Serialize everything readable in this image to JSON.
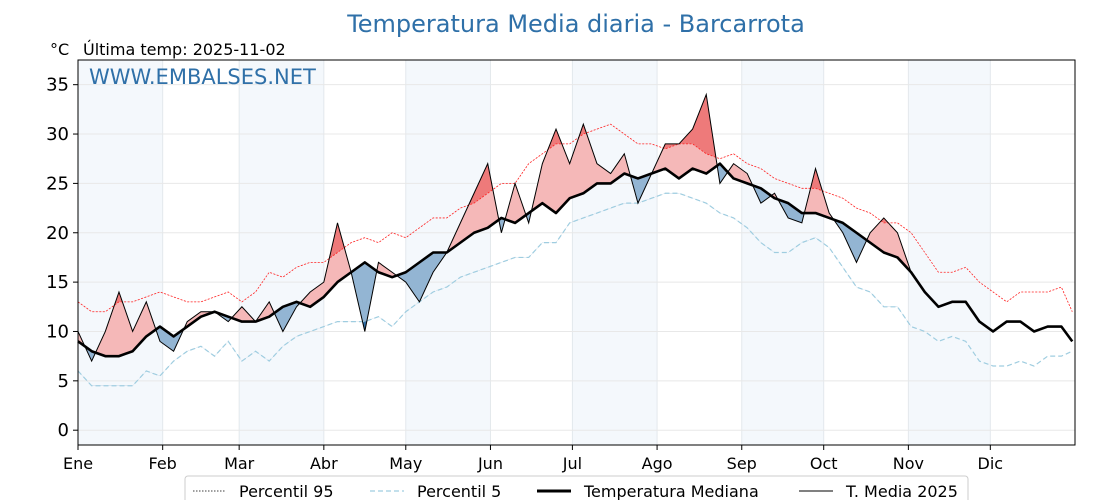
{
  "chart_data": {
    "type": "line",
    "title": "Temperatura Media diaria - Barcarrota",
    "ylabel": "°C",
    "subtitle": "Última temp: 2025-11-02",
    "watermark": "WWW.EMBALSES.NET",
    "xlim": [
      0,
      365
    ],
    "ylim": [
      -1.5,
      37.5
    ],
    "yticks": [
      0,
      5,
      10,
      15,
      20,
      25,
      30,
      35
    ],
    "month_ticks": [
      {
        "label": "Ene",
        "day": 0
      },
      {
        "label": "Feb",
        "day": 31
      },
      {
        "label": "Mar",
        "day": 59
      },
      {
        "label": "Abr",
        "day": 90
      },
      {
        "label": "May",
        "day": 120
      },
      {
        "label": "Jun",
        "day": 151
      },
      {
        "label": "Jul",
        "day": 181
      },
      {
        "label": "Ago",
        "day": 212
      },
      {
        "label": "Sep",
        "day": 243
      },
      {
        "label": "Oct",
        "day": 273
      },
      {
        "label": "Nov",
        "day": 304
      },
      {
        "label": "Dic",
        "day": 334
      }
    ],
    "grid": true,
    "legend_position": "bottom-center",
    "x_days": [
      0,
      5,
      10,
      15,
      20,
      25,
      30,
      35,
      40,
      45,
      50,
      55,
      60,
      65,
      70,
      75,
      80,
      85,
      90,
      95,
      100,
      105,
      110,
      115,
      120,
      125,
      130,
      135,
      140,
      145,
      150,
      155,
      160,
      165,
      170,
      175,
      180,
      185,
      190,
      195,
      200,
      205,
      210,
      215,
      220,
      225,
      230,
      235,
      240,
      245,
      250,
      255,
      260,
      265,
      270,
      275,
      280,
      285,
      290,
      295,
      300,
      305,
      310,
      315,
      320,
      325,
      330,
      335,
      340,
      345,
      350,
      355,
      360,
      364
    ],
    "series": [
      {
        "name": "Percentil 95",
        "color": "#ff2020",
        "values": [
          13,
          12,
          12,
          13,
          13,
          13.5,
          14,
          13.5,
          13,
          13,
          13.5,
          14,
          13,
          14,
          16,
          15.5,
          16.5,
          17,
          17,
          18,
          19,
          19.5,
          19,
          20,
          19.5,
          20.5,
          21.5,
          21.5,
          22.5,
          23,
          24,
          25,
          25,
          27,
          28,
          29,
          29,
          30,
          30.5,
          31,
          30,
          29,
          29,
          28.5,
          29,
          29,
          28,
          27.5,
          28,
          27,
          26.5,
          25.5,
          25,
          24.5,
          24.5,
          24,
          23.5,
          22.5,
          22,
          21,
          21,
          20,
          18,
          16,
          16,
          16.5,
          15,
          14,
          13,
          14,
          14,
          14,
          14.5,
          12
        ]
      },
      {
        "name": "Percentil 5",
        "color": "#9fcde0",
        "values": [
          6,
          4.5,
          4.5,
          4.5,
          4.5,
          6,
          5.5,
          7,
          8,
          8.5,
          7.5,
          9,
          7,
          8,
          7,
          8.5,
          9.5,
          10,
          10.5,
          11,
          11,
          11,
          11.5,
          10.5,
          12,
          13,
          14,
          14.5,
          15.5,
          16,
          16.5,
          17,
          17.5,
          17.5,
          19,
          19,
          21,
          21.5,
          22,
          22.5,
          23,
          23,
          23.5,
          24,
          24,
          23.5,
          23,
          22,
          21.5,
          20.5,
          19,
          18,
          18,
          19,
          19.5,
          18.5,
          16.5,
          14.5,
          14,
          12.5,
          12.5,
          10.5,
          10,
          9,
          9.5,
          9,
          7,
          6.5,
          6.5,
          7,
          6.5,
          7.5,
          7.5,
          8
        ]
      },
      {
        "name": "Temperatura Mediana",
        "color": "#000000",
        "values": [
          9,
          8,
          7.5,
          7.5,
          8,
          9.5,
          10.5,
          9.5,
          10.5,
          11.5,
          12,
          11.5,
          11,
          11,
          11.5,
          12.5,
          13,
          12.5,
          13.5,
          15,
          16,
          17,
          16,
          15.5,
          16,
          17,
          18,
          18,
          19,
          20,
          20.5,
          21.5,
          21,
          22,
          23,
          22,
          23.5,
          24,
          25,
          25,
          26,
          25.5,
          26,
          26.5,
          25.5,
          26.5,
          26,
          27,
          25.5,
          25,
          24.5,
          23.5,
          23,
          22,
          22,
          21.5,
          21,
          20,
          19,
          18,
          17.5,
          16,
          14,
          12.5,
          13,
          13,
          11,
          10,
          11,
          11,
          10,
          10.5,
          10.5,
          9
        ]
      },
      {
        "name": "T. Media 2025",
        "color": "#000000",
        "values": [
          10,
          7,
          10,
          14,
          10,
          13,
          9,
          8,
          11,
          12,
          12,
          11,
          12.5,
          11,
          13,
          10,
          12.5,
          14,
          15,
          21,
          16,
          10,
          17,
          16,
          15,
          13,
          16,
          18,
          21,
          24,
          27,
          20,
          25,
          21,
          27,
          30.5,
          27,
          31,
          27,
          26,
          28,
          23,
          26,
          29,
          29,
          30.5,
          34,
          25,
          27,
          26,
          23,
          24,
          21.5,
          21,
          26.5,
          22,
          20,
          17,
          20,
          21.5,
          20,
          16
        ]
      }
    ],
    "fill_colors": {
      "above_median": "#f5b8b8",
      "above_p95": "#ee7a7a",
      "below_median": "#93b5d3",
      "below_p5": "#2e6da4"
    },
    "band_color": "#f4f8fc"
  }
}
